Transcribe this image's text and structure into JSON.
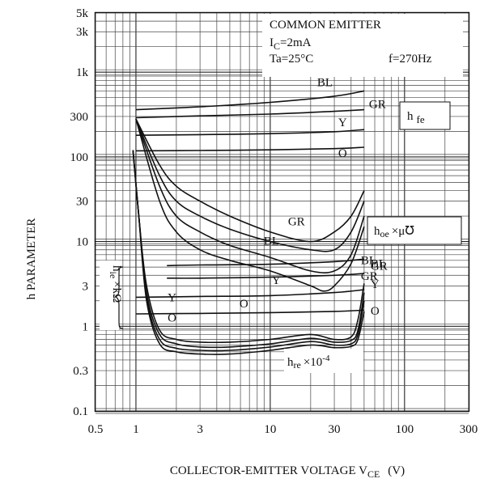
{
  "chart_data": {
    "type": "line",
    "title": "",
    "xlabel_text": "COLLECTOR-EMITTER VOLTAGE V",
    "xlabel_sub": "CE",
    "xlabel_unit": "(V)",
    "ylabel": "h PARAMETER",
    "x_scale": "log",
    "y_scale": "log",
    "xlim": [
      0.5,
      300
    ],
    "ylim": [
      0.1,
      5000
    ],
    "grid": true,
    "x_ticks": [
      {
        "value": 0.5,
        "label": "0.5"
      },
      {
        "value": 1,
        "label": "1"
      },
      {
        "value": 3,
        "label": "3"
      },
      {
        "value": 10,
        "label": "10"
      },
      {
        "value": 30,
        "label": "30"
      },
      {
        "value": 100,
        "label": "100"
      },
      {
        "value": 300,
        "label": "300"
      }
    ],
    "y_ticks": [
      {
        "value": 5000,
        "label": "5k"
      },
      {
        "value": 3000,
        "label": "3k"
      },
      {
        "value": 1000,
        "label": "1k"
      },
      {
        "value": 300,
        "label": "300"
      },
      {
        "value": 100,
        "label": "100"
      },
      {
        "value": 30,
        "label": "30"
      },
      {
        "value": 10,
        "label": "10"
      },
      {
        "value": 3,
        "label": "3"
      },
      {
        "value": 1,
        "label": "1"
      },
      {
        "value": 0.3,
        "label": "0.3"
      },
      {
        "value": 0.1,
        "label": "0.1"
      }
    ],
    "conditions": {
      "line1": "COMMON EMITTER",
      "ic_main": "I",
      "ic_sub": "C",
      "ic_value": "=2mA",
      "ta": "Ta=25°C",
      "freq": "f=270Hz"
    },
    "group_labels": {
      "hfe_main": "h",
      "hfe_sub": "fe",
      "hoe_main": "h",
      "hoe_sub": "oe",
      "hoe_suffix": "×μ℧",
      "hie_main": "h",
      "hie_sub": "ie",
      "hie_suffix": "×kΩ",
      "hre_main": "h",
      "hre_sub": "re",
      "hre_suffix": "×10",
      "hre_exp": "-4"
    },
    "series": [
      {
        "name": "BL",
        "group": "hfe",
        "x": [
          1,
          3,
          10,
          30,
          50
        ],
        "y": [
          360,
          390,
          440,
          520,
          600
        ]
      },
      {
        "name": "GR",
        "group": "hfe",
        "x": [
          1,
          3,
          10,
          30,
          50
        ],
        "y": [
          290,
          305,
          320,
          345,
          360
        ]
      },
      {
        "name": "Y",
        "group": "hfe",
        "x": [
          1,
          3,
          10,
          30,
          50
        ],
        "y": [
          180,
          183,
          188,
          198,
          210
        ]
      },
      {
        "name": "O",
        "group": "hfe",
        "x": [
          1,
          3,
          10,
          30,
          50
        ],
        "y": [
          118,
          119,
          121,
          125,
          130
        ]
      },
      {
        "name": "BL",
        "group": "hoe",
        "x": [
          1,
          1.5,
          2,
          3,
          5,
          10,
          20,
          30,
          40,
          50
        ],
        "y": [
          280,
          80,
          45,
          30,
          20,
          13,
          10,
          13,
          20,
          40
        ]
      },
      {
        "name": "GR",
        "group": "hoe",
        "x": [
          1,
          1.5,
          2,
          3,
          5,
          10,
          20,
          30,
          40,
          50
        ],
        "y": [
          280,
          60,
          30,
          20,
          14,
          10,
          8,
          8,
          13,
          30
        ]
      },
      {
        "name": "Y",
        "group": "hoe",
        "x": [
          1,
          1.5,
          2,
          3,
          5,
          10,
          20,
          30,
          40,
          50
        ],
        "y": [
          280,
          45,
          20,
          13,
          9,
          6.5,
          4.5,
          4.5,
          7,
          20
        ]
      },
      {
        "name": "O",
        "group": "hoe",
        "x": [
          1,
          1.5,
          2,
          3,
          5,
          10,
          20,
          25,
          30,
          40,
          50
        ],
        "y": [
          280,
          30,
          13,
          8,
          6,
          4.5,
          3,
          2.6,
          3,
          5.5,
          15
        ]
      },
      {
        "name": "BL",
        "group": "hie",
        "x": [
          1.7,
          3,
          10,
          30,
          50
        ],
        "y": [
          5.2,
          5.3,
          5.4,
          5.8,
          6.2
        ]
      },
      {
        "name": "GR",
        "group": "hie",
        "x": [
          1.7,
          3,
          10,
          30,
          50
        ],
        "y": [
          3.7,
          3.7,
          3.8,
          4.0,
          4.2
        ]
      },
      {
        "name": "Y",
        "group": "hie",
        "x": [
          1,
          3,
          10,
          30,
          50
        ],
        "y": [
          2.2,
          2.25,
          2.3,
          2.5,
          2.7
        ]
      },
      {
        "name": "O",
        "group": "hie",
        "x": [
          1,
          3,
          10,
          30,
          50
        ],
        "y": [
          1.4,
          1.42,
          1.45,
          1.5,
          1.55
        ]
      },
      {
        "name": "BL",
        "group": "hre",
        "x": [
          0.95,
          1.05,
          1.2,
          1.5,
          2,
          3,
          5,
          10,
          20,
          30,
          40,
          45,
          50
        ],
        "y": [
          120,
          20,
          3,
          0.9,
          0.7,
          0.65,
          0.65,
          0.7,
          0.8,
          0.7,
          0.75,
          1.2,
          3.2
        ]
      },
      {
        "name": "GR",
        "group": "hre",
        "x": [
          0.95,
          1.05,
          1.2,
          1.5,
          2,
          3,
          5,
          10,
          20,
          30,
          40,
          45,
          50
        ],
        "y": [
          120,
          20,
          2.5,
          0.8,
          0.62,
          0.57,
          0.57,
          0.62,
          0.72,
          0.65,
          0.68,
          0.9,
          2.5
        ]
      },
      {
        "name": "Y",
        "group": "hre",
        "x": [
          0.95,
          1.05,
          1.2,
          1.5,
          2,
          3,
          5,
          10,
          20,
          30,
          40,
          45,
          50
        ],
        "y": [
          120,
          20,
          2.2,
          0.7,
          0.55,
          0.52,
          0.52,
          0.57,
          0.66,
          0.6,
          0.62,
          0.8,
          2.0
        ]
      },
      {
        "name": "O",
        "group": "hre",
        "x": [
          0.95,
          1.05,
          1.2,
          1.5,
          2,
          3,
          5,
          10,
          20,
          30,
          40,
          45,
          50
        ],
        "y": [
          120,
          20,
          2.0,
          0.62,
          0.5,
          0.47,
          0.47,
          0.52,
          0.6,
          0.56,
          0.58,
          0.7,
          1.5
        ]
      }
    ]
  }
}
